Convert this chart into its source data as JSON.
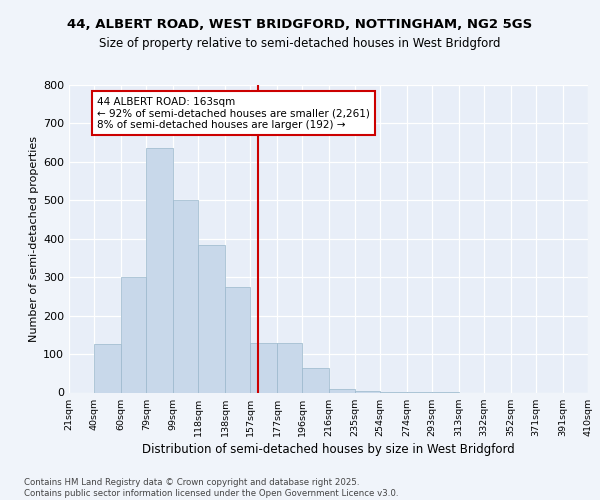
{
  "title_line1": "44, ALBERT ROAD, WEST BRIDGFORD, NOTTINGHAM, NG2 5GS",
  "title_line2": "Size of property relative to semi-detached houses in West Bridgford",
  "xlabel": "Distribution of semi-detached houses by size in West Bridgford",
  "ylabel": "Number of semi-detached properties",
  "bin_labels": [
    "21sqm",
    "40sqm",
    "60sqm",
    "79sqm",
    "99sqm",
    "118sqm",
    "138sqm",
    "157sqm",
    "177sqm",
    "196sqm",
    "216sqm",
    "235sqm",
    "254sqm",
    "274sqm",
    "293sqm",
    "313sqm",
    "332sqm",
    "352sqm",
    "371sqm",
    "391sqm",
    "410sqm"
  ],
  "bin_edges": [
    21,
    40,
    60,
    79,
    99,
    118,
    138,
    157,
    177,
    196,
    216,
    235,
    254,
    274,
    293,
    313,
    332,
    352,
    371,
    391,
    410
  ],
  "bar_heights": [
    0,
    125,
    300,
    635,
    500,
    385,
    275,
    130,
    130,
    65,
    10,
    5,
    2,
    1,
    1,
    0,
    0,
    0,
    0,
    0
  ],
  "property_size": 163,
  "annotation_title": "44 ALBERT ROAD: 163sqm",
  "annotation_line2": "← 92% of semi-detached houses are smaller (2,261)",
  "annotation_line3": "8% of semi-detached houses are larger (192) →",
  "bar_color": "#c8d8ea",
  "bar_edge_color": "#9ab8cc",
  "vline_color": "#cc0000",
  "annotation_box_edge": "#cc0000",
  "background_color": "#f0f4fa",
  "plot_bg_color": "#e8eef8",
  "ylim": [
    0,
    800
  ],
  "yticks": [
    0,
    100,
    200,
    300,
    400,
    500,
    600,
    700,
    800
  ],
  "footnote": "Contains HM Land Registry data © Crown copyright and database right 2025.\nContains public sector information licensed under the Open Government Licence v3.0."
}
